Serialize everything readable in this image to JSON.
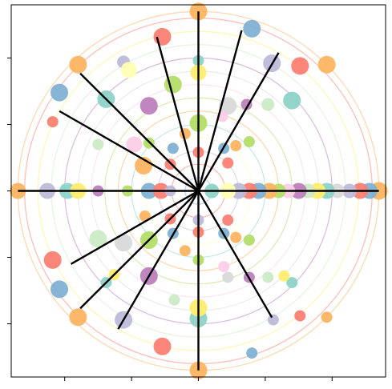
{
  "chart_data": {
    "type": "scatter",
    "title": "",
    "xlabel": "",
    "ylabel": "",
    "xlim": [
      -1.4,
      1.4
    ],
    "ylim": [
      -1.4,
      1.4
    ],
    "xticks": [
      -1.0,
      -0.5,
      0.0,
      0.5,
      1.0
    ],
    "yticks": [
      -1.0,
      -0.5,
      0.0,
      0.5,
      1.0
    ],
    "tick_labels_visible": false,
    "grid": false,
    "legend": "none",
    "palette": [
      "#8dd3c7",
      "#ffffb3",
      "#bebada",
      "#fb8072",
      "#80b1d3",
      "#fdb462",
      "#b3de69",
      "#fccde5",
      "#d9d9d9",
      "#bc80bd",
      "#ccebc5",
      "#ffed6f"
    ],
    "rings": {
      "radii": [
        0.1,
        0.2,
        0.3,
        0.4,
        0.5,
        0.6,
        0.7,
        0.8,
        0.9,
        1.0,
        1.1,
        1.2,
        1.3,
        1.35
      ],
      "colors": [
        "#80b1d3",
        "#fb8072",
        "#bebada",
        "#ffffb3",
        "#8dd3c7",
        "#fdb462",
        "#b3de69",
        "#fccde5",
        "#d9d9d9",
        "#bc80bd",
        "#ccebc5",
        "#ffed6f",
        "#fb8072",
        "#fdb462"
      ],
      "opacity": 0.5
    },
    "spokes": {
      "color": "#000000",
      "angles_deg": [
        0,
        60,
        75,
        90,
        105,
        135,
        150,
        180,
        210,
        225,
        240,
        270,
        300
      ],
      "radii": [
        1.35,
        1.2,
        1.25,
        1.35,
        1.2,
        1.25,
        1.2,
        1.35,
        1.1,
        1.25,
        1.2,
        1.35,
        1.1
      ]
    },
    "points": [
      {
        "x": 1.35,
        "y": 0.0,
        "r": 11,
        "color": "#fdb462"
      },
      {
        "x": 1.28,
        "y": 0.0,
        "r": 10,
        "color": "#80b1d3"
      },
      {
        "x": 1.21,
        "y": 0.0,
        "r": 10,
        "color": "#fb8072"
      },
      {
        "x": 1.13,
        "y": 0.0,
        "r": 9,
        "color": "#bebada"
      },
      {
        "x": 1.04,
        "y": 0.0,
        "r": 9,
        "color": "#d9d9d9"
      },
      {
        "x": 0.96,
        "y": 0.0,
        "r": 10,
        "color": "#8dd3c7"
      },
      {
        "x": 0.89,
        "y": 0.0,
        "r": 10,
        "color": "#ffed6f"
      },
      {
        "x": 0.82,
        "y": 0.0,
        "r": 9,
        "color": "#ccebc5"
      },
      {
        "x": 0.75,
        "y": 0.0,
        "r": 10,
        "color": "#bc80bd"
      },
      {
        "x": 0.67,
        "y": 0.0,
        "r": 9,
        "color": "#fccde5"
      },
      {
        "x": 0.6,
        "y": 0.0,
        "r": 9,
        "color": "#b3de69"
      },
      {
        "x": 0.53,
        "y": 0.0,
        "r": 10,
        "color": "#fdb462"
      },
      {
        "x": 0.45,
        "y": 0.0,
        "r": 10,
        "color": "#80b1d3"
      },
      {
        "x": 0.38,
        "y": 0.0,
        "r": 10,
        "color": "#fb8072"
      },
      {
        "x": 0.3,
        "y": 0.0,
        "r": 10,
        "color": "#bebada"
      },
      {
        "x": 0.22,
        "y": 0.0,
        "r": 10,
        "color": "#ffffb3"
      },
      {
        "x": 0.1,
        "y": 0.0,
        "r": 9,
        "color": "#8dd3c7"
      },
      {
        "x": -1.35,
        "y": 0.0,
        "r": 10,
        "color": "#fdb462"
      },
      {
        "x": -1.13,
        "y": 0.0,
        "r": 10,
        "color": "#bebada"
      },
      {
        "x": -0.98,
        "y": 0.0,
        "r": 10,
        "color": "#8dd3c7"
      },
      {
        "x": -0.9,
        "y": 0.0,
        "r": 10,
        "color": "#ffed6f"
      },
      {
        "x": -0.75,
        "y": 0.0,
        "r": 7,
        "color": "#bc80bd"
      },
      {
        "x": -0.53,
        "y": 0.0,
        "r": 7,
        "color": "#b3de69"
      },
      {
        "x": -0.37,
        "y": 0.0,
        "r": 10,
        "color": "#80b1d3"
      },
      {
        "x": -0.28,
        "y": 0.0,
        "r": 10,
        "color": "#fb8072"
      },
      {
        "x": -0.21,
        "y": 0.0,
        "r": 7,
        "color": "#bebada"
      },
      {
        "x": 0.0,
        "y": 1.35,
        "r": 11,
        "color": "#fdb462"
      },
      {
        "x": 0.0,
        "y": 0.98,
        "r": 7,
        "color": "#8dd3c7"
      },
      {
        "x": 0.0,
        "y": 0.89,
        "r": 10,
        "color": "#ffed6f"
      },
      {
        "x": 0.0,
        "y": 0.51,
        "r": 11,
        "color": "#b3de69"
      },
      {
        "x": 0.0,
        "y": 0.29,
        "r": 7,
        "color": "#fb8072"
      },
      {
        "x": 0.0,
        "y": -1.35,
        "r": 11,
        "color": "#fdb462"
      },
      {
        "x": 0.0,
        "y": -0.96,
        "r": 11,
        "color": "#8dd3c7"
      },
      {
        "x": 0.0,
        "y": -0.88,
        "r": 11,
        "color": "#ffed6f"
      },
      {
        "x": 0.0,
        "y": -0.52,
        "r": 7,
        "color": "#b3de69"
      },
      {
        "x": 0.0,
        "y": -0.31,
        "r": 7,
        "color": "#fb8072"
      },
      {
        "x": 0.0,
        "y": -0.22,
        "r": 7,
        "color": "#bebada"
      },
      {
        "x": -0.9,
        "y": 0.95,
        "r": 11,
        "color": "#fdb462"
      },
      {
        "x": -1.04,
        "y": 0.74,
        "r": 11,
        "color": "#80b1d3"
      },
      {
        "x": -0.27,
        "y": 1.16,
        "r": 11,
        "color": "#fb8072"
      },
      {
        "x": -0.56,
        "y": 0.97,
        "r": 8,
        "color": "#bebada"
      },
      {
        "x": -0.52,
        "y": 0.91,
        "r": 10,
        "color": "#ffffb3"
      },
      {
        "x": -0.69,
        "y": 0.69,
        "r": 11,
        "color": "#8dd3c7"
      },
      {
        "x": -0.37,
        "y": 0.64,
        "r": 11,
        "color": "#bc80bd"
      },
      {
        "x": -0.19,
        "y": 0.8,
        "r": 11,
        "color": "#b3de69"
      },
      {
        "x": -1.09,
        "y": 0.52,
        "r": 7,
        "color": "#fb8072"
      },
      {
        "x": -0.75,
        "y": 0.35,
        "r": 7,
        "color": "#ccebc5"
      },
      {
        "x": -0.48,
        "y": 0.35,
        "r": 10,
        "color": "#fccde5"
      },
      {
        "x": -0.37,
        "y": 0.36,
        "r": 7,
        "color": "#b3de69"
      },
      {
        "x": -0.19,
        "y": 0.32,
        "r": 7,
        "color": "#80b1d3"
      },
      {
        "x": -0.1,
        "y": 0.43,
        "r": 7,
        "color": "#fdb462"
      },
      {
        "x": -0.41,
        "y": 0.19,
        "r": 11,
        "color": "#fdb462"
      },
      {
        "x": -0.21,
        "y": 0.2,
        "r": 7,
        "color": "#fb8072"
      },
      {
        "x": 0.4,
        "y": 1.22,
        "r": 11,
        "color": "#80b1d3"
      },
      {
        "x": 0.55,
        "y": 0.96,
        "r": 11,
        "color": "#bebada"
      },
      {
        "x": 0.76,
        "y": 0.94,
        "r": 11,
        "color": "#fb8072"
      },
      {
        "x": 0.96,
        "y": 0.95,
        "r": 11,
        "color": "#fdb462"
      },
      {
        "x": 0.7,
        "y": 0.68,
        "r": 11,
        "color": "#8dd3c7"
      },
      {
        "x": 0.52,
        "y": 0.65,
        "r": 8,
        "color": "#ccebc5"
      },
      {
        "x": 0.36,
        "y": 0.65,
        "r": 7,
        "color": "#bc80bd"
      },
      {
        "x": 0.22,
        "y": 0.64,
        "r": 11,
        "color": "#d9d9d9"
      },
      {
        "x": 0.18,
        "y": 0.56,
        "r": 7,
        "color": "#fccde5"
      },
      {
        "x": 0.38,
        "y": 0.37,
        "r": 7,
        "color": "#b3de69"
      },
      {
        "x": 0.28,
        "y": 0.34,
        "r": 7,
        "color": "#fdb462"
      },
      {
        "x": 0.19,
        "y": 0.32,
        "r": 7,
        "color": "#80b1d3"
      },
      {
        "x": 0.22,
        "y": 0.21,
        "r": 7,
        "color": "#fb8072"
      },
      {
        "x": -1.09,
        "y": -0.52,
        "r": 11,
        "color": "#fb8072"
      },
      {
        "x": -1.04,
        "y": -0.74,
        "r": 11,
        "color": "#80b1d3"
      },
      {
        "x": -0.9,
        "y": -0.95,
        "r": 11,
        "color": "#fdb462"
      },
      {
        "x": -0.56,
        "y": -0.97,
        "r": 11,
        "color": "#bebada"
      },
      {
        "x": -0.75,
        "y": -0.36,
        "r": 11,
        "color": "#ccebc5"
      },
      {
        "x": -0.69,
        "y": -0.69,
        "r": 7,
        "color": "#8dd3c7"
      },
      {
        "x": -0.63,
        "y": -0.63,
        "r": 7,
        "color": "#ffed6f"
      },
      {
        "x": -0.56,
        "y": -0.39,
        "r": 11,
        "color": "#d9d9d9"
      },
      {
        "x": -0.37,
        "y": -0.37,
        "r": 11,
        "color": "#b3de69"
      },
      {
        "x": -0.37,
        "y": -0.64,
        "r": 11,
        "color": "#bc80bd"
      },
      {
        "x": -0.19,
        "y": -0.32,
        "r": 7,
        "color": "#80b1d3"
      },
      {
        "x": -0.21,
        "y": -0.21,
        "r": 7,
        "color": "#fb8072"
      },
      {
        "x": -0.4,
        "y": -0.19,
        "r": 7,
        "color": "#fdb462"
      },
      {
        "x": -0.1,
        "y": -0.45,
        "r": 7,
        "color": "#fdb462"
      },
      {
        "x": -0.18,
        "y": -0.82,
        "r": 7,
        "color": "#ccebc5"
      },
      {
        "x": -0.27,
        "y": -1.17,
        "r": 11,
        "color": "#fb8072"
      },
      {
        "x": 0.4,
        "y": -1.22,
        "r": 7,
        "color": "#80b1d3"
      },
      {
        "x": 0.56,
        "y": -0.97,
        "r": 7,
        "color": "#bebada"
      },
      {
        "x": 0.76,
        "y": -0.94,
        "r": 7,
        "color": "#fb8072"
      },
      {
        "x": 0.96,
        "y": -0.95,
        "r": 7,
        "color": "#fdb462"
      },
      {
        "x": 0.7,
        "y": -0.69,
        "r": 7,
        "color": "#8dd3c7"
      },
      {
        "x": 0.64,
        "y": -0.64,
        "r": 7,
        "color": "#ffed6f"
      },
      {
        "x": 0.52,
        "y": -0.65,
        "r": 7,
        "color": "#ccebc5"
      },
      {
        "x": 0.38,
        "y": -0.65,
        "r": 7,
        "color": "#bc80bd"
      },
      {
        "x": 0.22,
        "y": -0.65,
        "r": 7,
        "color": "#d9d9d9"
      },
      {
        "x": 0.19,
        "y": -0.57,
        "r": 7,
        "color": "#fccde5"
      },
      {
        "x": 0.38,
        "y": -0.37,
        "r": 7,
        "color": "#b3de69"
      },
      {
        "x": 0.28,
        "y": -0.35,
        "r": 7,
        "color": "#fdb462"
      },
      {
        "x": 0.19,
        "y": -0.32,
        "r": 7,
        "color": "#80b1d3"
      },
      {
        "x": 0.22,
        "y": -0.22,
        "r": 7,
        "color": "#fb8072"
      }
    ]
  }
}
